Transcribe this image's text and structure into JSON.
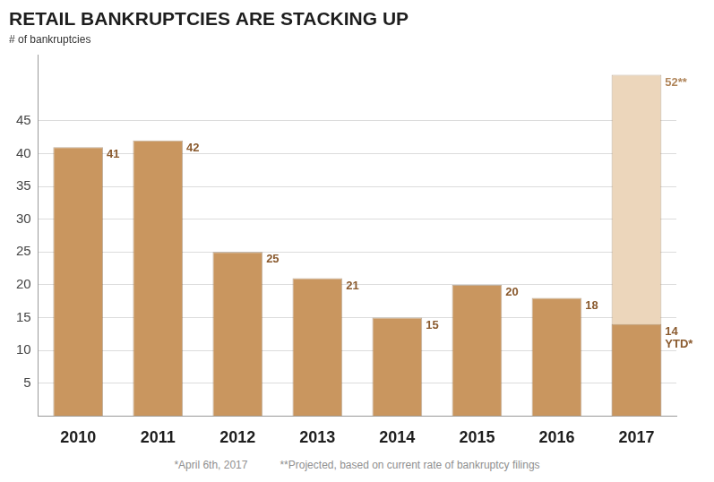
{
  "chart_data": {
    "type": "bar",
    "title": "RETAIL BANKRUPTCIES ARE STACKING UP",
    "subtitle": "# of bankruptcies",
    "categories": [
      "2010",
      "2011",
      "2012",
      "2013",
      "2014",
      "2015",
      "2016",
      "2017"
    ],
    "series": [
      {
        "color": "#c9965f",
        "values": [
          41,
          42,
          25,
          21,
          15,
          20,
          18,
          14
        ],
        "value_labels": [
          "41",
          "42",
          "25",
          "21",
          "15",
          "20",
          "18",
          "14 YTD*"
        ]
      },
      {
        "color": "#ecd6bb",
        "values": [
          null,
          null,
          null,
          null,
          null,
          null,
          null,
          52
        ],
        "value_labels": [
          null,
          null,
          null,
          null,
          null,
          null,
          null,
          "52**"
        ]
      }
    ],
    "ylim": [
      0,
      55
    ],
    "yticks": [
      5,
      10,
      15,
      20,
      25,
      30,
      35,
      40,
      45
    ],
    "grid": true,
    "data_labels": true,
    "notes": [
      "*April 6th, 2017",
      "**Projected, based on current rate of bankruptcy filings"
    ]
  }
}
